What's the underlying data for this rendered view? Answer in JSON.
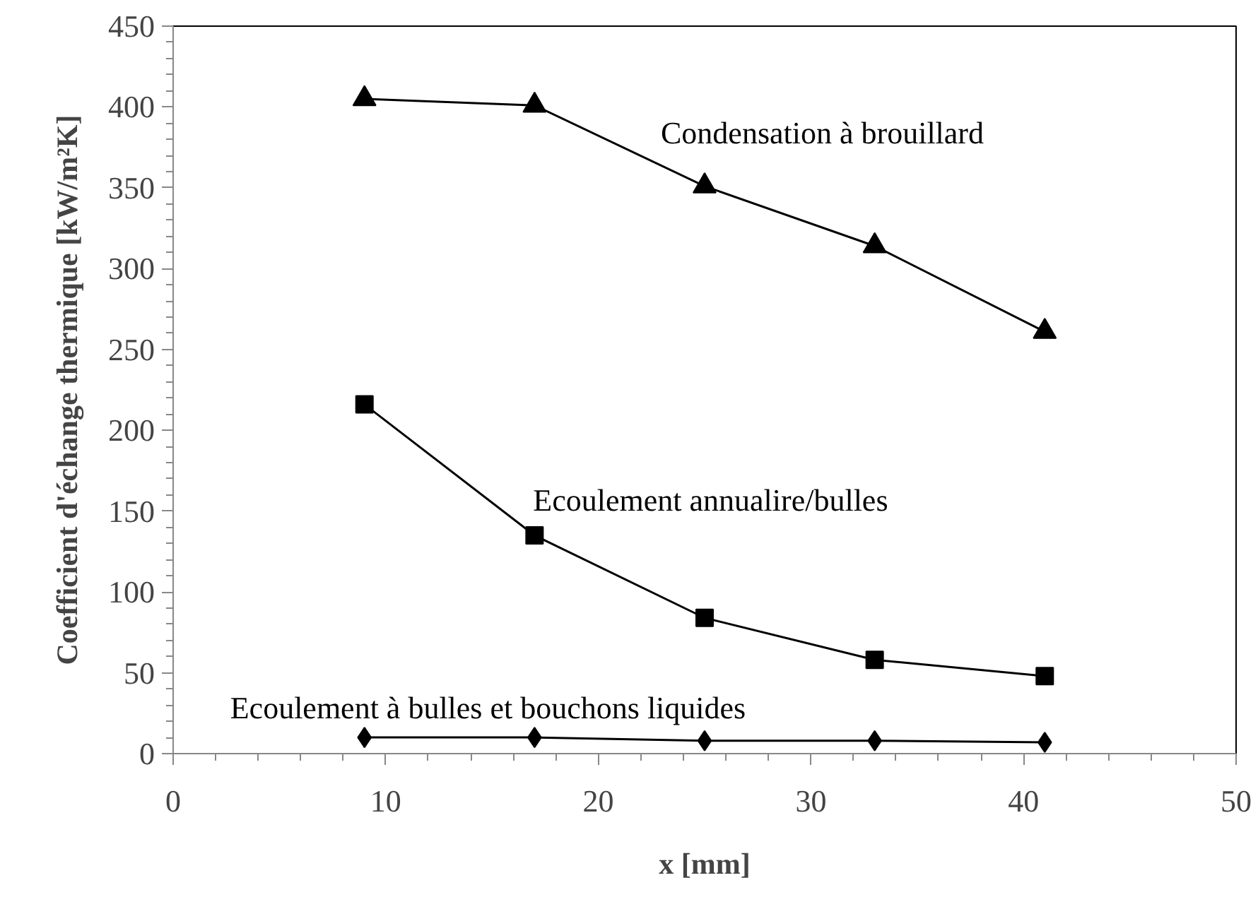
{
  "chart_data": {
    "type": "line",
    "xlabel": "x [mm]",
    "ylabel": "Coefficient d'échange thermique [kW/m²K]",
    "x": [
      9,
      17,
      25,
      33,
      41
    ],
    "series": [
      {
        "name": "Condensation à brouillard",
        "color": "#000000",
        "marker": "triangle",
        "values": [
          405,
          401,
          351,
          314,
          261
        ]
      },
      {
        "name": "Ecoulement annualire/bulles",
        "color": "#000000",
        "marker": "square",
        "values": [
          216,
          135,
          84,
          58,
          48
        ]
      },
      {
        "name": "Ecoulement à bulles et bouchons liquides",
        "color": "#000000",
        "marker": "diamond",
        "values": [
          10,
          10,
          8,
          8,
          7
        ]
      }
    ],
    "xlim": [
      0,
      50
    ],
    "xticks": [
      0,
      10,
      20,
      30,
      40,
      50
    ],
    "ylim": [
      0,
      450
    ],
    "yticks": [
      0,
      50,
      100,
      150,
      200,
      250,
      300,
      350,
      400,
      450
    ],
    "grid": false,
    "line_style": "solid"
  }
}
